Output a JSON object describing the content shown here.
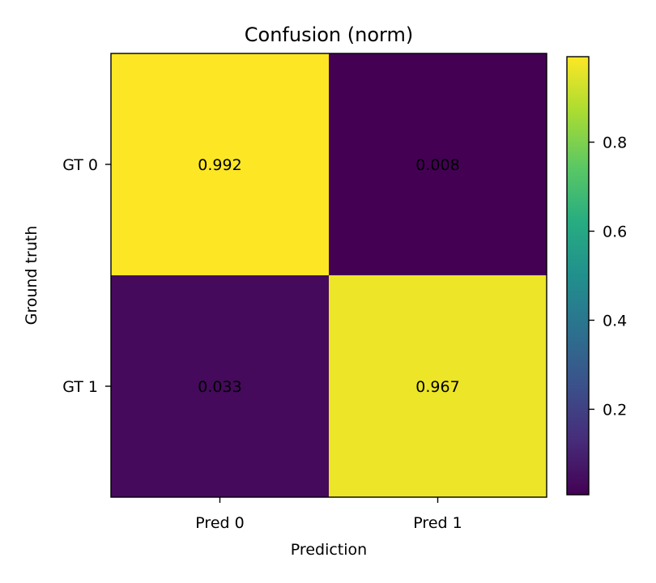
{
  "chart_data": {
    "type": "heatmap",
    "title": "Confusion (norm)",
    "xlabel": "Prediction",
    "ylabel": "Ground truth",
    "x_categories": [
      "Pred 0",
      "Pred 1"
    ],
    "y_categories": [
      "GT 0",
      "GT 1"
    ],
    "values": [
      [
        0.992,
        0.008
      ],
      [
        0.033,
        0.967
      ]
    ],
    "cell_labels": [
      [
        "0.992",
        "0.008"
      ],
      [
        "0.033",
        "0.967"
      ]
    ],
    "colormap": "viridis",
    "colorbar": {
      "range": [
        0.008,
        0.992
      ],
      "ticks": [
        0.2,
        0.4,
        0.6,
        0.8
      ],
      "tick_labels": [
        "0.2",
        "0.4",
        "0.6",
        "0.8"
      ]
    },
    "grid": false
  }
}
